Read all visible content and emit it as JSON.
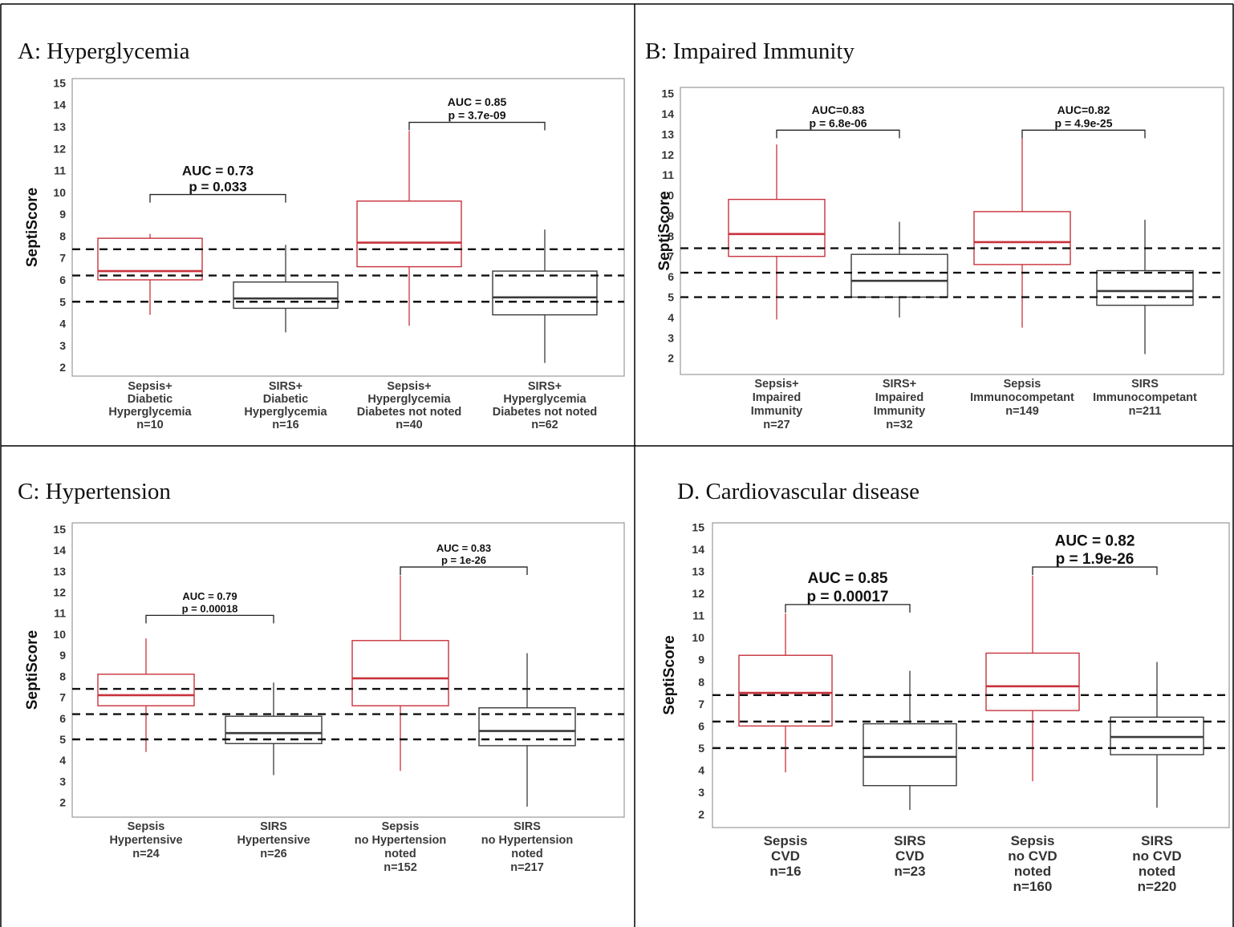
{
  "colors": {
    "sepsis": "#c8323c",
    "sirs": "#3a3a3a",
    "threshold": "#111111"
  },
  "chart_data": [
    {
      "type": "box",
      "title": "A: Hyperglycemia",
      "ylabel": "SeptiScore",
      "ylim": [
        1.6,
        15.2
      ],
      "yticks": [
        2,
        3,
        4,
        5,
        6,
        7,
        8,
        9,
        10,
        11,
        12,
        13,
        14,
        15
      ],
      "thresholds": [
        7.4,
        6.2,
        5.0
      ],
      "groups": [
        {
          "label": [
            "Sepsis+",
            "Diabetic",
            "Hyperglycemia",
            "n=10"
          ],
          "kind": "sepsis",
          "whisker_low": 4.4,
          "q1": 6.0,
          "median": 6.4,
          "q3": 7.9,
          "whisker_high": 8.1
        },
        {
          "label": [
            "SIRS+",
            "Diabetic",
            "Hyperglycemia",
            "n=16"
          ],
          "kind": "sirs",
          "whisker_low": 3.6,
          "q1": 4.7,
          "median": 5.15,
          "q3": 5.9,
          "whisker_high": 7.6
        },
        {
          "label": [
            "Sepsis+",
            "Hyperglycemia",
            "Diabetes not noted",
            "n=40"
          ],
          "kind": "sepsis",
          "whisker_low": 3.9,
          "q1": 6.6,
          "median": 7.7,
          "q3": 9.6,
          "whisker_high": 12.8
        },
        {
          "label": [
            "SIRS+",
            "Hyperglycemia",
            "Diabetes not noted",
            "n=62"
          ],
          "kind": "sirs",
          "whisker_low": 2.2,
          "q1": 4.4,
          "median": 5.2,
          "q3": 6.4,
          "whisker_high": 8.3
        }
      ],
      "comparisons": [
        {
          "from": 0,
          "to": 1,
          "auc": "AUC = 0.73",
          "p": "p = 0.033",
          "y": 9.9,
          "emphasis": true
        },
        {
          "from": 2,
          "to": 3,
          "auc": "AUC = 0.85",
          "p": "p = 3.7e-09",
          "y": 13.2,
          "emphasis": false
        }
      ]
    },
    {
      "type": "box",
      "title": "B: Impaired Immunity",
      "ylabel": "SeptiScore",
      "ylim": [
        1.2,
        15.3
      ],
      "yticks": [
        2,
        3,
        4,
        5,
        6,
        7,
        8,
        9,
        10,
        11,
        12,
        13,
        14,
        15
      ],
      "thresholds": [
        7.4,
        6.2,
        5.0
      ],
      "groups": [
        {
          "label": [
            "Sepsis+",
            "Impaired",
            "Immunity",
            "n=27"
          ],
          "kind": "sepsis",
          "whisker_low": 3.9,
          "q1": 7.0,
          "median": 8.1,
          "q3": 9.8,
          "whisker_high": 12.5
        },
        {
          "label": [
            "SIRS+",
            "Impaired",
            "Immunity",
            "n=32"
          ],
          "kind": "sirs",
          "whisker_low": 4.0,
          "q1": 5.0,
          "median": 5.8,
          "q3": 7.1,
          "whisker_high": 8.7
        },
        {
          "label": [
            "Sepsis",
            "Immunocompetant",
            "n=149"
          ],
          "kind": "sepsis",
          "whisker_low": 3.5,
          "q1": 6.6,
          "median": 7.7,
          "q3": 9.2,
          "whisker_high": 12.8
        },
        {
          "label": [
            "SIRS",
            "Immunocompetant",
            "n=211"
          ],
          "kind": "sirs",
          "whisker_low": 2.2,
          "q1": 4.6,
          "median": 5.3,
          "q3": 6.3,
          "whisker_high": 8.8
        }
      ],
      "comparisons": [
        {
          "from": 0,
          "to": 1,
          "auc": "AUC=0.83",
          "p": "p = 6.8e-06",
          "y": 13.2,
          "emphasis": false
        },
        {
          "from": 2,
          "to": 3,
          "auc": "AUC=0.82",
          "p": "p = 4.9e-25",
          "y": 13.2,
          "emphasis": false
        }
      ]
    },
    {
      "type": "box",
      "title": "C: Hypertension",
      "ylabel": "SeptiScore",
      "ylim": [
        1.3,
        15.3
      ],
      "yticks": [
        2,
        3,
        4,
        5,
        6,
        7,
        8,
        9,
        10,
        11,
        12,
        13,
        14,
        15
      ],
      "thresholds": [
        7.4,
        6.2,
        5.0
      ],
      "groups": [
        {
          "label": [
            "Sepsis",
            "Hypertensive",
            "n=24"
          ],
          "kind": "sepsis",
          "whisker_low": 4.4,
          "q1": 6.6,
          "median": 7.1,
          "q3": 8.1,
          "whisker_high": 9.8
        },
        {
          "label": [
            "SIRS",
            "Hypertensive",
            "n=26"
          ],
          "kind": "sirs",
          "whisker_low": 3.3,
          "q1": 4.8,
          "median": 5.3,
          "q3": 6.1,
          "whisker_high": 7.7
        },
        {
          "label": [
            "Sepsis",
            "no Hypertension",
            "noted",
            "n=152"
          ],
          "kind": "sepsis",
          "whisker_low": 3.5,
          "q1": 6.6,
          "median": 7.9,
          "q3": 9.7,
          "whisker_high": 12.8
        },
        {
          "label": [
            "SIRS",
            "no Hypertension",
            "noted",
            "n=217"
          ],
          "kind": "sirs",
          "whisker_low": 1.8,
          "q1": 4.7,
          "median": 5.4,
          "q3": 6.5,
          "whisker_high": 9.1
        }
      ],
      "comparisons": [
        {
          "from": 0,
          "to": 1,
          "auc": "AUC = 0.79",
          "p": "p = 0.00018",
          "y": 10.9,
          "emphasis": false
        },
        {
          "from": 2,
          "to": 3,
          "auc": "AUC = 0.83",
          "p": "p = 1e-26",
          "y": 13.2,
          "emphasis": false
        }
      ]
    },
    {
      "type": "box",
      "title": "D. Cardiovascular disease",
      "ylabel": "SeptiScore",
      "ylim": [
        1.4,
        15.2
      ],
      "yticks": [
        2,
        3,
        4,
        5,
        6,
        7,
        8,
        9,
        10,
        11,
        12,
        13,
        14,
        15
      ],
      "thresholds": [
        7.4,
        6.2,
        5.0
      ],
      "groups": [
        {
          "label": [
            "Sepsis",
            "CVD",
            "n=16"
          ],
          "kind": "sepsis",
          "whisker_low": 3.9,
          "q1": 6.0,
          "median": 7.5,
          "q3": 9.2,
          "whisker_high": 11.1
        },
        {
          "label": [
            "SIRS",
            "CVD",
            "n=23"
          ],
          "kind": "sirs",
          "whisker_low": 2.2,
          "q1": 3.3,
          "median": 4.6,
          "q3": 6.1,
          "whisker_high": 8.5
        },
        {
          "label": [
            "Sepsis",
            "no CVD",
            "noted",
            "n=160"
          ],
          "kind": "sepsis",
          "whisker_low": 3.5,
          "q1": 6.7,
          "median": 7.8,
          "q3": 9.3,
          "whisker_high": 12.8
        },
        {
          "label": [
            "SIRS",
            "no CVD",
            "noted",
            "n=220"
          ],
          "kind": "sirs",
          "whisker_low": 2.3,
          "q1": 4.7,
          "median": 5.5,
          "q3": 6.4,
          "whisker_high": 8.9
        }
      ],
      "comparisons": [
        {
          "from": 0,
          "to": 1,
          "auc": "AUC = 0.85",
          "p": "p = 0.00017",
          "y": 11.5,
          "emphasis": true
        },
        {
          "from": 2,
          "to": 3,
          "auc": "AUC = 0.82",
          "p": "p = 1.9e-26",
          "y": 13.2,
          "emphasis": true
        }
      ]
    }
  ]
}
